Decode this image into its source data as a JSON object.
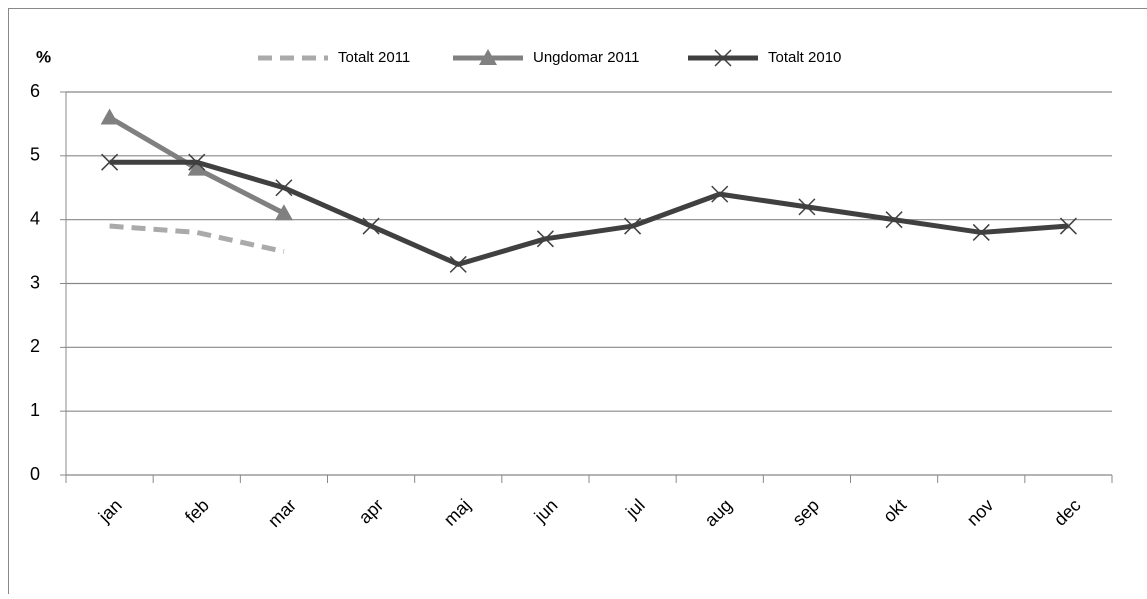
{
  "chart_data": {
    "type": "line",
    "ylabel": "%",
    "categories": [
      "jan",
      "feb",
      "mar",
      "apr",
      "maj",
      "jun",
      "jul",
      "aug",
      "sep",
      "okt",
      "nov",
      "dec"
    ],
    "series": [
      {
        "name": "Totalt 2011",
        "color": "#aaaaaa",
        "dash": true,
        "marker": "none",
        "values": [
          3.9,
          3.8,
          3.5,
          null,
          null,
          null,
          null,
          null,
          null,
          null,
          null,
          null
        ]
      },
      {
        "name": "Ungdomar 2011",
        "color": "#808080",
        "dash": false,
        "marker": "triangle",
        "values": [
          5.6,
          4.8,
          4.1,
          null,
          null,
          null,
          null,
          null,
          null,
          null,
          null,
          null
        ]
      },
      {
        "name": "Totalt 2010",
        "color": "#404040",
        "dash": false,
        "marker": "x",
        "values": [
          4.9,
          4.9,
          4.5,
          3.9,
          3.3,
          3.7,
          3.9,
          4.4,
          4.2,
          4.0,
          3.8,
          3.9
        ]
      }
    ],
    "ylim": [
      0,
      6
    ],
    "yticks": [
      0,
      1,
      2,
      3,
      4,
      5,
      6
    ],
    "grid": true,
    "legend": "top"
  }
}
